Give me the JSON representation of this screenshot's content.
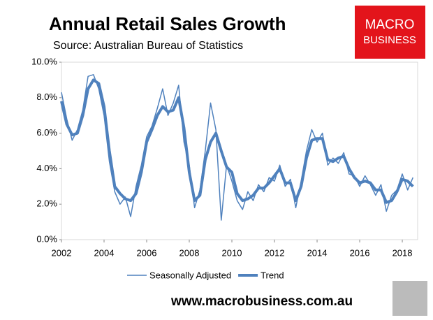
{
  "chart_data": {
    "type": "line",
    "title": "Annual Retail Sales Growth",
    "subtitle": "Source: Australian Bureau of Statistics",
    "logo": [
      "MACRO",
      "BUSINESS"
    ],
    "footer": "www.macrobusiness.com.au",
    "x": [
      2002,
      2002.25,
      2002.5,
      2002.75,
      2003,
      2003.25,
      2003.5,
      2003.75,
      2004,
      2004.25,
      2004.5,
      2004.75,
      2005,
      2005.25,
      2005.5,
      2005.75,
      2006,
      2006.25,
      2006.5,
      2006.75,
      2007,
      2007.25,
      2007.5,
      2007.75,
      2008,
      2008.25,
      2008.5,
      2008.75,
      2009,
      2009.25,
      2009.5,
      2009.75,
      2010,
      2010.25,
      2010.5,
      2010.75,
      2011,
      2011.25,
      2011.5,
      2011.75,
      2012,
      2012.25,
      2012.5,
      2012.75,
      2013,
      2013.25,
      2013.5,
      2013.75,
      2014,
      2014.25,
      2014.5,
      2014.75,
      2015,
      2015.25,
      2015.5,
      2015.75,
      2016,
      2016.25,
      2016.5,
      2016.75,
      2017,
      2017.25,
      2017.5,
      2017.75,
      2018,
      2018.25,
      2018.5
    ],
    "series": [
      {
        "name": "Seasonally Adjusted",
        "color": "#4f81bd",
        "width": 1.5,
        "values": [
          8.3,
          6.8,
          5.6,
          6.2,
          7.3,
          9.2,
          9.3,
          8.5,
          7.0,
          4.4,
          2.7,
          2.0,
          2.4,
          1.3,
          3.0,
          4.2,
          5.8,
          6.4,
          7.4,
          8.5,
          7.0,
          7.7,
          8.7,
          5.5,
          4.2,
          1.8,
          2.8,
          5.0,
          7.7,
          6.2,
          1.1,
          4.2,
          3.3,
          2.2,
          1.7,
          2.7,
          2.2,
          3.1,
          2.7,
          3.5,
          3.3,
          4.2,
          3.0,
          3.4,
          1.8,
          3.3,
          5.0,
          6.2,
          5.5,
          6.0,
          4.2,
          4.6,
          4.3,
          4.9,
          3.7,
          3.6,
          3.0,
          3.6,
          3.1,
          2.5,
          3.1,
          1.6,
          2.5,
          2.8,
          3.7,
          2.8,
          3.5
        ]
      },
      {
        "name": "Trend",
        "color": "#4f81bd",
        "width": 4,
        "values": [
          7.8,
          6.5,
          5.9,
          6.0,
          7.0,
          8.5,
          9.0,
          8.8,
          7.5,
          5.0,
          3.0,
          2.6,
          2.3,
          2.2,
          2.6,
          3.8,
          5.5,
          6.2,
          7.0,
          7.5,
          7.2,
          7.3,
          8.0,
          6.3,
          3.8,
          2.2,
          2.5,
          4.5,
          5.5,
          6.0,
          5.0,
          4.1,
          3.8,
          2.6,
          2.2,
          2.3,
          2.5,
          2.9,
          2.9,
          3.2,
          3.6,
          4.0,
          3.2,
          3.2,
          2.2,
          3.0,
          4.6,
          5.6,
          5.7,
          5.7,
          4.5,
          4.4,
          4.6,
          4.7,
          4.0,
          3.5,
          3.2,
          3.3,
          3.2,
          2.8,
          2.8,
          2.1,
          2.2,
          2.7,
          3.4,
          3.3,
          3.0
        ]
      }
    ],
    "xlim": [
      2002,
      2018.72
    ],
    "xticks": [
      2002,
      2004,
      2006,
      2008,
      2010,
      2012,
      2014,
      2016,
      2018
    ],
    "ylim": [
      0,
      10
    ],
    "yticks": [
      {
        "value": 0,
        "label": "0.0%"
      },
      {
        "value": 2,
        "label": "2.0%"
      },
      {
        "value": 4,
        "label": "4.0%"
      },
      {
        "value": 6,
        "label": "6.0%"
      },
      {
        "value": 8,
        "label": "8.0%"
      },
      {
        "value": 10,
        "label": "10.0%"
      }
    ],
    "grid": false
  }
}
